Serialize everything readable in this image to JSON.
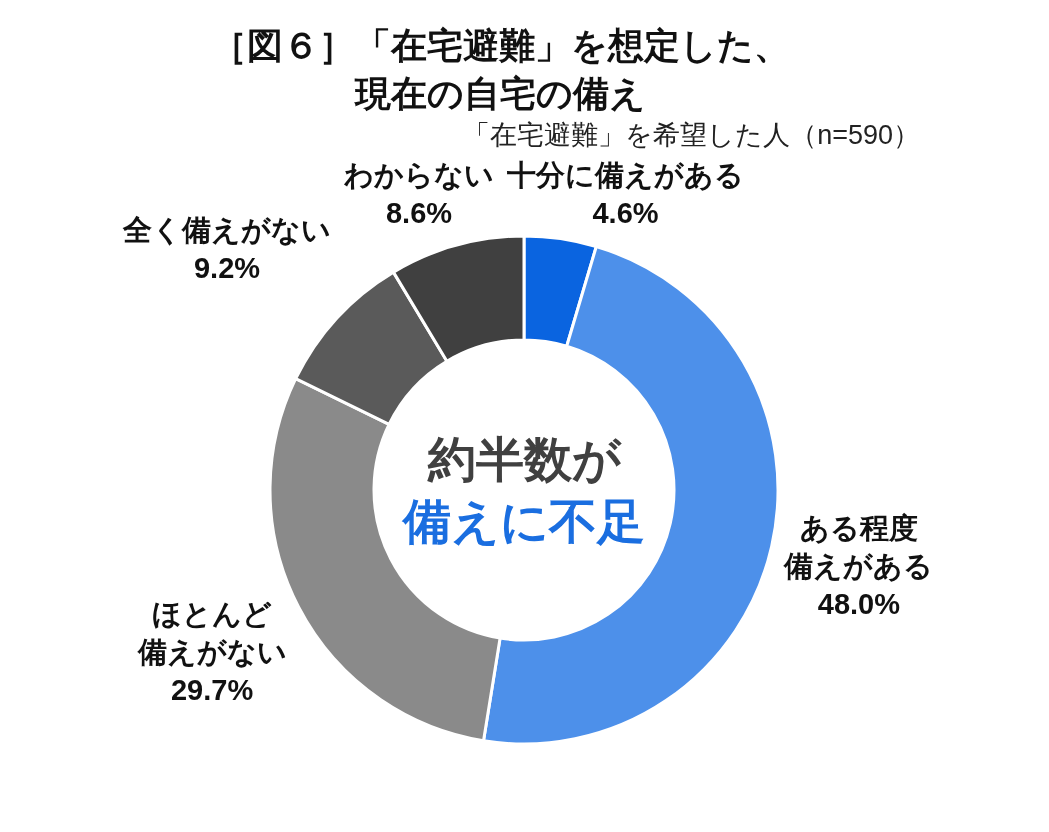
{
  "chart_data": {
    "type": "donut",
    "title": "［図６］「在宅避難」を想定した、現在の自宅の備え",
    "subtitle": "「在宅避難」を希望した人（n=590）",
    "categories": [
      "十分に備えがある",
      "ある程度備えがある",
      "ほとんど備えがない",
      "全く備えがない",
      "わからない"
    ],
    "values": [
      4.6,
      48.0,
      29.7,
      9.2,
      8.6
    ],
    "value_labels": [
      "4.6%",
      "48.0%",
      "29.7%",
      "9.2%",
      "8.6%"
    ],
    "colors": [
      "#0a64e0",
      "#4d90ea",
      "#8a8a8a",
      "#5a5a5a",
      "#404040"
    ],
    "annotations": [
      "約半数が",
      "備えに不足"
    ]
  }
}
